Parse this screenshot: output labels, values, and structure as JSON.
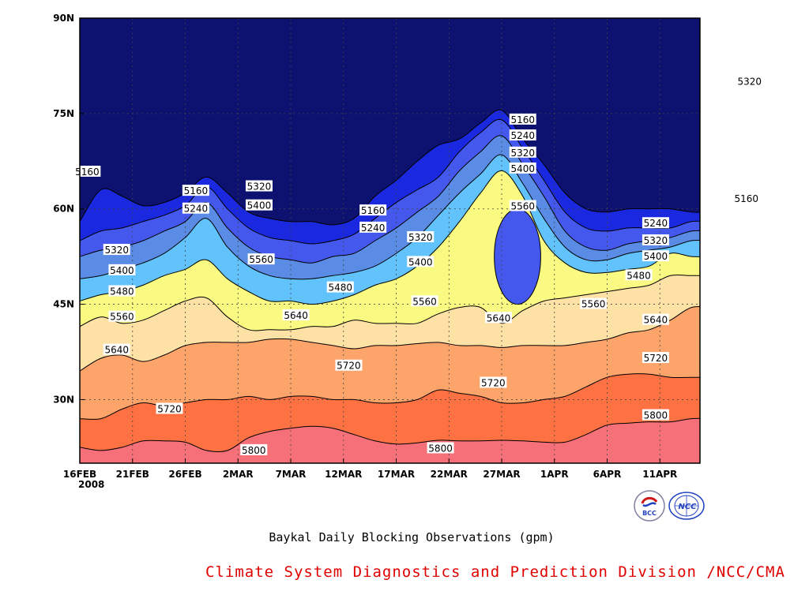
{
  "chart_data": {
    "type": "contour",
    "title": "Baykal Daily Blocking Observations (gpm)",
    "x_axis": {
      "unit": "date",
      "range": [
        "2008-02-16",
        "2008-04-14"
      ],
      "ticks": [
        "16FEB",
        "21FEB",
        "26FEB",
        "2MAR",
        "7MAR",
        "12MAR",
        "17MAR",
        "22MAR",
        "27MAR",
        "1APR",
        "6APR",
        "11APR"
      ],
      "tick_days": [
        0,
        5,
        10,
        15,
        20,
        25,
        30,
        35,
        40,
        45,
        50,
        55
      ],
      "year_label": "2008"
    },
    "y_axis": {
      "unit": "latitude",
      "range": [
        20,
        90
      ],
      "ticks": [
        "30N",
        "45N",
        "60N",
        "75N",
        "90N"
      ],
      "tick_values": [
        30,
        45,
        60,
        75,
        90
      ]
    },
    "grid": true,
    "contour_levels": [
      5160,
      5240,
      5320,
      5400,
      5480,
      5560,
      5640,
      5720,
      5800
    ],
    "fill_colors": [
      "#0d1270",
      "#1a28e0",
      "#4458ee",
      "#5a8ce6",
      "#62c2fc",
      "#fafa82",
      "#fde1a5",
      "#fda46b",
      "#fd7142",
      "#f67079"
    ],
    "days": [
      0,
      2,
      4,
      6,
      8,
      10,
      12,
      14,
      16,
      18,
      20,
      22,
      24,
      26,
      28,
      30,
      32,
      34,
      36,
      38,
      40,
      42,
      44,
      46,
      48,
      50,
      52,
      54,
      56,
      58
    ],
    "contours": [
      {
        "level": 5800,
        "lat": [
          22.5,
          22.0,
          22.5,
          23.5,
          23.5,
          23.3,
          22.0,
          22.0,
          24.0,
          25.0,
          25.5,
          25.8,
          25.5,
          24.5,
          23.5,
          23.0,
          23.2,
          23.6,
          23.5,
          23.5,
          23.6,
          23.5,
          23.3,
          23.3,
          24.5,
          26.0,
          26.3,
          26.5,
          26.5,
          27.0
        ]
      },
      {
        "level": 5720,
        "lat": [
          27.0,
          27.0,
          28.5,
          29.5,
          29.0,
          29.5,
          30.0,
          30.0,
          30.5,
          30.0,
          30.5,
          30.5,
          30.0,
          30.0,
          29.5,
          29.5,
          30.0,
          31.5,
          31.0,
          30.5,
          29.5,
          29.5,
          30.0,
          30.5,
          32.0,
          33.5,
          34.0,
          34.0,
          33.5,
          33.5
        ]
      },
      {
        "level": 5640,
        "lat": [
          34.5,
          36.5,
          37.0,
          36.0,
          37.0,
          38.5,
          39.0,
          39.0,
          39.0,
          39.5,
          39.5,
          39.0,
          38.5,
          38.0,
          38.5,
          38.5,
          38.8,
          39.0,
          38.5,
          38.5,
          38.2,
          38.5,
          38.5,
          38.5,
          39.0,
          39.5,
          40.5,
          41.0,
          42.5,
          44.5
        ]
      },
      {
        "level": 5560,
        "lat": [
          41.5,
          43.0,
          42.0,
          42.5,
          44.0,
          45.5,
          46.0,
          43.0,
          41.0,
          41.0,
          41.0,
          41.5,
          41.5,
          42.5,
          42.0,
          42.0,
          42.0,
          43.5,
          44.5,
          44.5,
          42.0,
          44.0,
          45.5,
          46.0,
          46.5,
          47.0,
          47.5,
          48.0,
          49.5,
          49.5
        ]
      },
      {
        "level": 5480,
        "lat": [
          45.5,
          46.5,
          47.0,
          48.0,
          49.5,
          50.5,
          52.0,
          49.0,
          47.0,
          45.5,
          45.5,
          45.0,
          45.5,
          46.5,
          48.0,
          49.0,
          51.0,
          54.0,
          58.0,
          62.5,
          66.0,
          62.0,
          55.0,
          51.5,
          50.0,
          50.0,
          50.5,
          51.0,
          53.0,
          52.5
        ]
      },
      {
        "level": 5400,
        "lat": [
          49.0,
          49.5,
          50.5,
          51.5,
          53.0,
          55.5,
          58.5,
          54.0,
          51.0,
          49.5,
          49.0,
          49.0,
          49.5,
          50.0,
          51.0,
          53.0,
          55.5,
          59.0,
          62.5,
          65.5,
          68.5,
          64.0,
          58.5,
          54.0,
          52.0,
          52.0,
          53.0,
          53.5,
          54.0,
          55.0
        ]
      },
      {
        "level": 5320,
        "lat": [
          52.5,
          53.5,
          54.0,
          55.0,
          56.5,
          58.0,
          61.0,
          57.0,
          54.0,
          52.5,
          52.0,
          51.5,
          52.5,
          53.0,
          55.0,
          57.0,
          59.5,
          62.0,
          66.0,
          69.0,
          71.5,
          67.0,
          62.0,
          56.5,
          54.0,
          53.5,
          54.5,
          55.0,
          55.5,
          56.5
        ]
      },
      {
        "level": 5240,
        "lat": [
          55.0,
          56.5,
          57.0,
          58.0,
          59.0,
          60.5,
          63.5,
          60.0,
          57.0,
          55.5,
          55.0,
          54.5,
          55.0,
          56.0,
          58.5,
          61.0,
          63.0,
          65.0,
          69.0,
          72.0,
          74.0,
          69.5,
          64.5,
          59.5,
          57.0,
          56.5,
          57.0,
          57.0,
          57.0,
          58.0
        ]
      },
      {
        "level": 5160,
        "lat": [
          58.0,
          63.0,
          62.0,
          60.5,
          61.0,
          62.5,
          65.0,
          62.5,
          59.5,
          58.5,
          58.0,
          58.0,
          57.5,
          58.5,
          62.0,
          64.5,
          67.5,
          70.0,
          71.0,
          73.5,
          75.5,
          71.0,
          67.0,
          62.5,
          60.0,
          59.5,
          60.0,
          60.0,
          60.0,
          59.5
        ]
      }
    ],
    "closed_contours": [
      {
        "level": 5640,
        "center_day": 41.5,
        "center_lat": 52.5,
        "half_width_days": 2.2,
        "half_height_lat": 7.5
      }
    ],
    "contour_labels": [
      {
        "text": "5160",
        "day": 0.7,
        "lat": 65.8
      },
      {
        "text": "5160",
        "day": 11.0,
        "lat": 62.8
      },
      {
        "text": "5240",
        "day": 11.0,
        "lat": 60.0
      },
      {
        "text": "5320",
        "day": 17.0,
        "lat": 63.5
      },
      {
        "text": "5400",
        "day": 17.0,
        "lat": 60.5
      },
      {
        "text": "5320",
        "day": 3.5,
        "lat": 53.5
      },
      {
        "text": "5400",
        "day": 4.0,
        "lat": 50.3
      },
      {
        "text": "5480",
        "day": 4.0,
        "lat": 47.0
      },
      {
        "text": "5560",
        "day": 4.0,
        "lat": 43.0
      },
      {
        "text": "5640",
        "day": 3.5,
        "lat": 37.8
      },
      {
        "text": "5720",
        "day": 8.5,
        "lat": 28.5
      },
      {
        "text": "5800",
        "day": 16.5,
        "lat": 22.0
      },
      {
        "text": "5560",
        "day": 17.2,
        "lat": 52.0
      },
      {
        "text": "5640",
        "day": 20.5,
        "lat": 43.2
      },
      {
        "text": "5720",
        "day": 25.5,
        "lat": 35.3
      },
      {
        "text": "5480",
        "day": 24.7,
        "lat": 47.6
      },
      {
        "text": "5160",
        "day": 27.8,
        "lat": 59.7
      },
      {
        "text": "5240",
        "day": 27.8,
        "lat": 57.0
      },
      {
        "text": "5320",
        "day": 32.3,
        "lat": 55.5
      },
      {
        "text": "5400",
        "day": 32.3,
        "lat": 51.6
      },
      {
        "text": "5560",
        "day": 32.7,
        "lat": 45.4
      },
      {
        "text": "5800",
        "day": 34.2,
        "lat": 22.3
      },
      {
        "text": "5640",
        "day": 39.7,
        "lat": 42.8
      },
      {
        "text": "5720",
        "day": 39.2,
        "lat": 32.6
      },
      {
        "text": "5160",
        "day": 42.0,
        "lat": 74.0
      },
      {
        "text": "5240",
        "day": 42.0,
        "lat": 71.5
      },
      {
        "text": "5320",
        "day": 42.0,
        "lat": 68.8
      },
      {
        "text": "5400",
        "day": 42.0,
        "lat": 66.3
      },
      {
        "text": "5560",
        "day": 42.0,
        "lat": 60.4
      },
      {
        "text": "5560",
        "day": 48.7,
        "lat": 45.0
      },
      {
        "text": "5480",
        "day": 53.0,
        "lat": 49.5
      },
      {
        "text": "5240",
        "day": 54.6,
        "lat": 57.7
      },
      {
        "text": "5320",
        "day": 54.6,
        "lat": 55.0
      },
      {
        "text": "5400",
        "day": 54.6,
        "lat": 52.5
      },
      {
        "text": "5640",
        "day": 54.6,
        "lat": 42.5
      },
      {
        "text": "5720",
        "day": 54.6,
        "lat": 36.5
      },
      {
        "text": "5800",
        "day": 54.6,
        "lat": 27.5
      },
      {
        "text": "5160",
        "day": 63.2,
        "lat": 61.6
      },
      {
        "text": "5320",
        "day": 63.5,
        "lat": 80.0
      }
    ]
  },
  "footer": {
    "title": "Baykal Daily Blocking Observations (gpm)",
    "credit": "Climate System Diagnostics and Prediction Division /NCC/CMA",
    "logo_bcc_text": "BCC",
    "logo_ncc_text": "NCC"
  }
}
